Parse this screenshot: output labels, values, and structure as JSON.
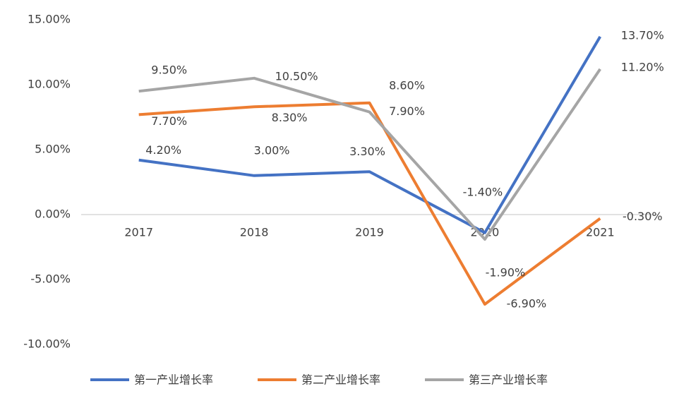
{
  "chart_data": {
    "type": "line",
    "categories": [
      "2017",
      "2018",
      "2019",
      "2020",
      "2021"
    ],
    "series": [
      {
        "name": "第一产业增长率",
        "color": "#4472c4",
        "values": [
          4.2,
          3.0,
          3.3,
          -1.4,
          13.7
        ],
        "value_labels": [
          "4.20%",
          "3.00%",
          "3.30%",
          "-1.40%",
          "13.70%"
        ]
      },
      {
        "name": "第二产业增长率",
        "color": "#ed7d31",
        "values": [
          7.7,
          8.3,
          8.6,
          -6.9,
          -0.3
        ],
        "value_labels": [
          "7.70%",
          "8.30%",
          "8.60%",
          "-6.90%",
          "-0.30%"
        ]
      },
      {
        "name": "第三产业增长率",
        "color": "#a5a5a5",
        "values": [
          9.5,
          10.5,
          7.9,
          -1.9,
          11.2
        ],
        "value_labels": [
          "9.50%",
          "10.50%",
          "7.90%",
          "-1.90%",
          "11.20%"
        ]
      }
    ],
    "ylim": [
      -10,
      15
    ],
    "yticks": [
      {
        "value": -10,
        "label": "-10.00%"
      },
      {
        "value": -5,
        "label": "-5.00%"
      },
      {
        "value": 0,
        "label": "0.00%"
      },
      {
        "value": 5,
        "label": "5.00%"
      },
      {
        "value": 10,
        "label": "10.00%"
      },
      {
        "value": 15,
        "label": "15.00%"
      }
    ],
    "grid": false
  }
}
